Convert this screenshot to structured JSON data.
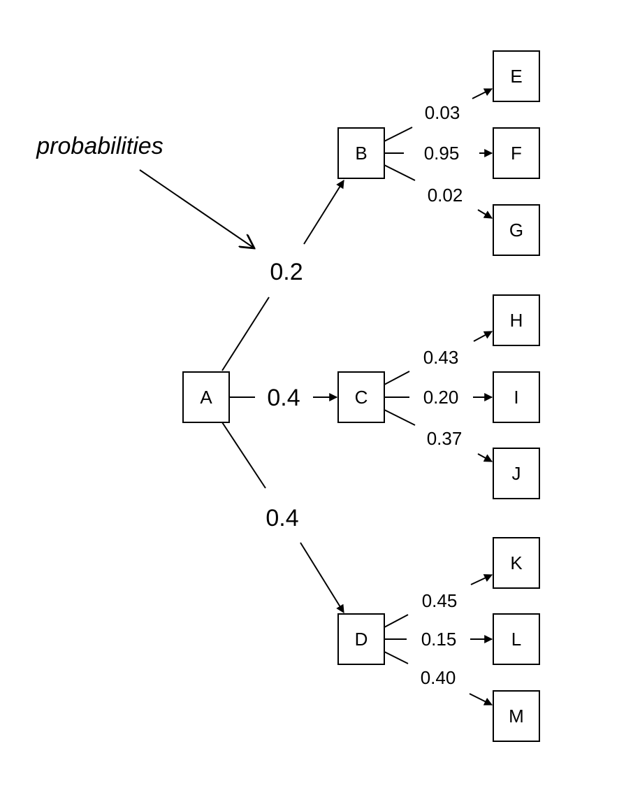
{
  "annotation": {
    "text": "probabilities"
  },
  "nodes": {
    "A": "A",
    "B": "B",
    "C": "C",
    "D": "D",
    "E": "E",
    "F": "F",
    "G": "G",
    "H": "H",
    "I": "I",
    "J": "J",
    "K": "K",
    "L": "L",
    "M": "M"
  },
  "edges": {
    "A_B": "0.2",
    "A_C": "0.4",
    "A_D": "0.4",
    "B_E": "0.03",
    "B_F": "0.95",
    "B_G": "0.02",
    "C_H": "0.43",
    "C_I": "0.20",
    "C_J": "0.37",
    "D_K": "0.45",
    "D_L": "0.15",
    "D_M": "0.40"
  },
  "colors": {
    "stroke": "#000000",
    "background": "#ffffff"
  }
}
